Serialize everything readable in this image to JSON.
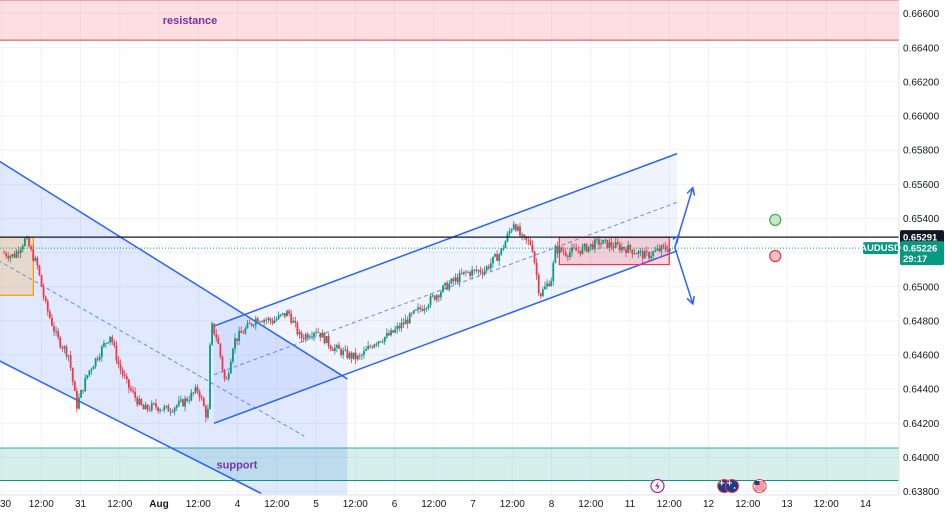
{
  "chart_data": {
    "type": "candlestick",
    "symbol": "AUDUSD",
    "y_axis": {
      "range": [
        0.6378,
        0.6668
      ],
      "ticks": [
        "0.66600",
        "0.66400",
        "0.66200",
        "0.66000",
        "0.65800",
        "0.65600",
        "0.65400",
        "0.65200",
        "0.65000",
        "0.64800",
        "0.64600",
        "0.64400",
        "0.64200",
        "0.64000",
        "0.63800"
      ]
    },
    "x_axis": {
      "range": [
        0,
        10.7
      ],
      "ticks": [
        {
          "t": 0.0,
          "label": "30"
        },
        {
          "t": 0.5,
          "label": "12:00"
        },
        {
          "t": 1.0,
          "label": "31"
        },
        {
          "t": 1.5,
          "label": "12:00"
        },
        {
          "t": 2.0,
          "label": "Aug"
        },
        {
          "t": 2.5,
          "label": "12:00"
        },
        {
          "t": 3.0,
          "label": "4"
        },
        {
          "t": 3.5,
          "label": "12:00"
        },
        {
          "t": 4.0,
          "label": "5"
        },
        {
          "t": 4.5,
          "label": "12:00"
        },
        {
          "t": 5.0,
          "label": "6"
        },
        {
          "t": 5.5,
          "label": "12:00"
        },
        {
          "t": 6.0,
          "label": "7"
        },
        {
          "t": 6.5,
          "label": "12:00"
        },
        {
          "t": 7.0,
          "label": "8"
        },
        {
          "t": 7.5,
          "label": "12:00"
        },
        {
          "t": 8.0,
          "label": "11"
        },
        {
          "t": 8.5,
          "label": "12:00"
        },
        {
          "t": 9.0,
          "label": "12"
        },
        {
          "t": 9.5,
          "label": "12:00"
        },
        {
          "t": 10.0,
          "label": "13"
        },
        {
          "t": 10.5,
          "label": "12:00"
        },
        {
          "t": 11.0,
          "label": "14"
        }
      ]
    },
    "price_path": [
      [
        0.0,
        0.652
      ],
      [
        0.15,
        0.6518
      ],
      [
        0.3,
        0.6528
      ],
      [
        0.45,
        0.6512
      ],
      [
        0.55,
        0.649
      ],
      [
        0.7,
        0.647
      ],
      [
        0.85,
        0.646
      ],
      [
        0.95,
        0.643
      ],
      [
        1.1,
        0.645
      ],
      [
        1.25,
        0.6462
      ],
      [
        1.38,
        0.6472
      ],
      [
        1.48,
        0.6455
      ],
      [
        1.6,
        0.6442
      ],
      [
        1.8,
        0.6428
      ],
      [
        1.95,
        0.643
      ],
      [
        2.1,
        0.6428
      ],
      [
        2.3,
        0.6432
      ],
      [
        2.5,
        0.644
      ],
      [
        2.62,
        0.6422
      ],
      [
        2.66,
        0.6478
      ],
      [
        2.74,
        0.647
      ],
      [
        2.85,
        0.6442
      ],
      [
        2.95,
        0.6468
      ],
      [
        3.1,
        0.6475
      ],
      [
        3.25,
        0.6482
      ],
      [
        3.45,
        0.648
      ],
      [
        3.65,
        0.6485
      ],
      [
        3.8,
        0.647
      ],
      [
        4.0,
        0.6475
      ],
      [
        4.2,
        0.6465
      ],
      [
        4.4,
        0.646
      ],
      [
        4.55,
        0.6458
      ],
      [
        4.75,
        0.6468
      ],
      [
        4.95,
        0.6472
      ],
      [
        5.15,
        0.648
      ],
      [
        5.4,
        0.649
      ],
      [
        5.65,
        0.65
      ],
      [
        5.9,
        0.6508
      ],
      [
        6.15,
        0.651
      ],
      [
        6.35,
        0.652
      ],
      [
        6.52,
        0.6538
      ],
      [
        6.62,
        0.6528
      ],
      [
        6.75,
        0.6525
      ],
      [
        6.85,
        0.6495
      ],
      [
        7.0,
        0.6505
      ],
      [
        7.05,
        0.6522
      ],
      [
        7.2,
        0.652
      ],
      [
        7.4,
        0.6522
      ],
      [
        7.6,
        0.6526
      ],
      [
        7.8,
        0.6524
      ],
      [
        8.0,
        0.6522
      ],
      [
        8.2,
        0.6518
      ],
      [
        8.4,
        0.6522
      ],
      [
        8.52,
        0.6523
      ]
    ],
    "current_price": {
      "label": "0.65226",
      "countdown": "29:17",
      "value": 0.65226
    },
    "horizontal_level": {
      "label": "0.65291",
      "value": 0.65291
    },
    "zones": [
      {
        "name": "resistance",
        "label": "resistance",
        "y": [
          0.66445,
          0.6668
        ],
        "color": "#f23645"
      },
      {
        "name": "support",
        "label": "support",
        "y": [
          0.63865,
          0.64055
        ],
        "color": "#089981"
      }
    ],
    "channels": [
      {
        "name": "descending-channel",
        "color": "#2962ff",
        "upper": [
          [
            -0.05,
            0.6574
          ],
          [
            4.4,
            0.6446
          ]
        ],
        "lower": [
          [
            -0.05,
            0.6457
          ],
          [
            3.3,
            0.6379
          ]
        ]
      },
      {
        "name": "ascending-channel",
        "color": "#2962ff",
        "upper": [
          [
            2.7,
            0.6477
          ],
          [
            8.6,
            0.6578
          ]
        ],
        "lower": [
          [
            2.7,
            0.642
          ],
          [
            8.6,
            0.6521
          ]
        ]
      }
    ],
    "consolidation_box": {
      "t": [
        7.1,
        8.5
      ],
      "y": [
        0.6513,
        0.6529
      ],
      "color": "#f23645"
    },
    "left_box": {
      "t": [
        -0.1,
        0.4
      ],
      "y": [
        0.6495,
        0.6529
      ],
      "color": "#ff9800"
    },
    "scenario_arrows": [
      {
        "name": "bullish-arrow",
        "from": [
          8.52,
          0.6523
        ],
        "to": [
          8.8,
          0.6558
        ]
      },
      {
        "name": "bearish-arrow",
        "from": [
          8.52,
          0.6523
        ],
        "to": [
          8.8,
          0.649
        ]
      }
    ],
    "markers": [
      {
        "name": "green-circle",
        "t": 9.85,
        "y": 0.65392,
        "color": "#4caf50"
      },
      {
        "name": "red-circle",
        "t": 9.85,
        "y": 0.6518,
        "color": "#f23645"
      }
    ],
    "event_icons": [
      {
        "name": "lightning-icon",
        "t": 8.35
      },
      {
        "name": "australia-flag-icon",
        "t": 9.2
      },
      {
        "name": "australia-flag-icon",
        "t": 9.3
      },
      {
        "name": "us-flag-icon",
        "t": 9.65
      }
    ],
    "colors": {
      "up": "#089981",
      "down": "#f23645",
      "grid": "#f0f3fa",
      "axis_text": "#131722"
    }
  }
}
